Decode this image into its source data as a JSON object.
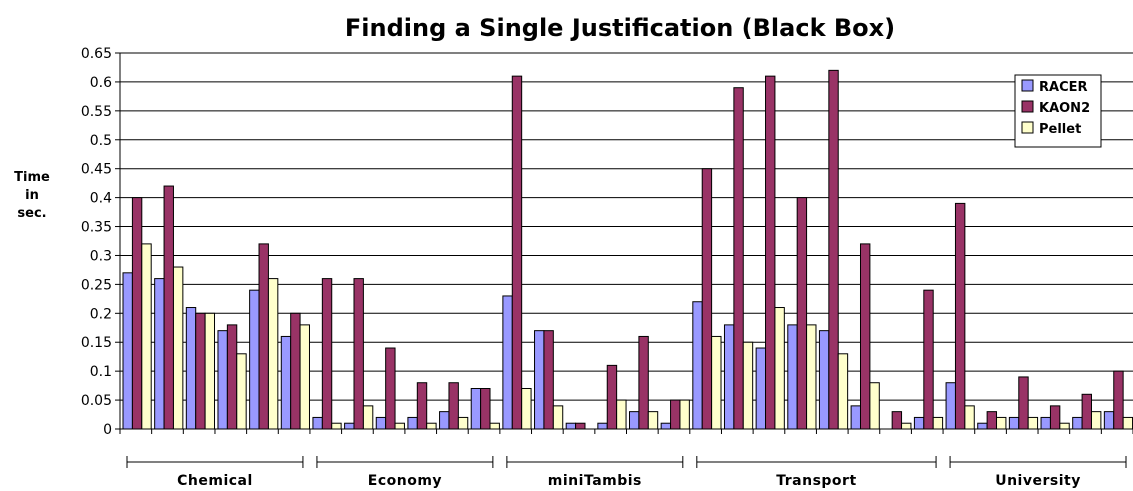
{
  "chart_data": {
    "type": "bar",
    "title": "Finding a Single Justification (Black Box)",
    "ylabel_lines": [
      "Time",
      "in",
      "sec."
    ],
    "ylim": [
      0,
      0.65
    ],
    "yticks": [
      "0",
      "0.05",
      "0.1",
      "0.15",
      "0.2",
      "0.25",
      "0.3",
      "0.35",
      "0.4",
      "0.45",
      "0.5",
      "0.55",
      "0.6",
      "0.65"
    ],
    "grid": true,
    "legend_position": "top-right",
    "groups": [
      {
        "label": "Chemical",
        "count": 6
      },
      {
        "label": "Economy",
        "count": 6
      },
      {
        "label": "miniTambis",
        "count": 6
      },
      {
        "label": "Transport",
        "count": 8
      },
      {
        "label": "University",
        "count": 6
      }
    ],
    "series": [
      {
        "name": "RACER",
        "color": "#9999ff",
        "values": [
          0.27,
          0.26,
          0.21,
          0.17,
          0.24,
          0.16,
          0.02,
          0.01,
          0.02,
          0.02,
          0.03,
          0.07,
          0.23,
          0.17,
          0.01,
          0.01,
          0.03,
          0.01,
          0.22,
          0.18,
          0.14,
          0.18,
          0.17,
          0.04,
          0.0,
          0.02,
          0.08,
          0.01,
          0.02,
          0.02,
          0.02,
          0.03
        ]
      },
      {
        "name": "KAON2",
        "color": "#993366",
        "values": [
          0.4,
          0.42,
          0.2,
          0.18,
          0.32,
          0.2,
          0.26,
          0.26,
          0.14,
          0.08,
          0.08,
          0.07,
          0.61,
          0.17,
          0.01,
          0.11,
          0.16,
          0.05,
          0.45,
          0.59,
          0.61,
          0.4,
          0.62,
          0.32,
          0.03,
          0.24,
          0.39,
          0.03,
          0.09,
          0.04,
          0.06,
          0.1
        ]
      },
      {
        "name": "Pellet",
        "color": "#ffffcc",
        "values": [
          0.32,
          0.28,
          0.2,
          0.13,
          0.26,
          0.18,
          0.01,
          0.04,
          0.01,
          0.01,
          0.02,
          0.01,
          0.07,
          0.04,
          0.0,
          0.05,
          0.03,
          0.05,
          0.16,
          0.15,
          0.21,
          0.18,
          0.13,
          0.08,
          0.01,
          0.02,
          0.04,
          0.02,
          0.02,
          0.01,
          0.03,
          0.02
        ]
      }
    ]
  }
}
